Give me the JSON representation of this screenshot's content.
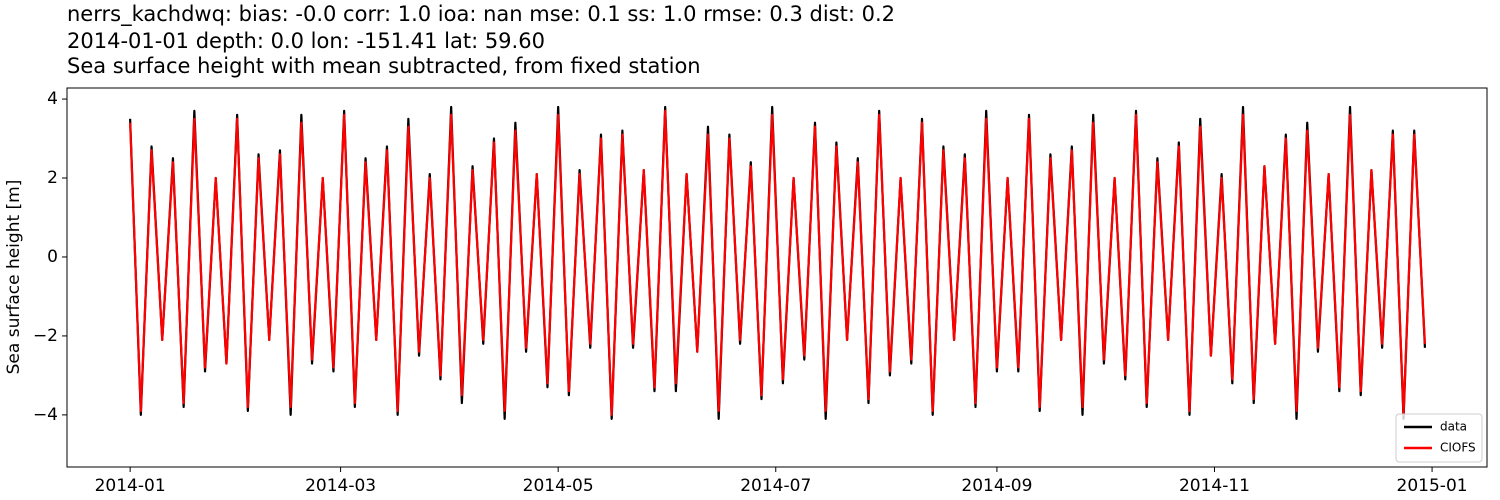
{
  "chart_data": {
    "type": "line",
    "title": [
      "nerrs_kachdwq: bias: -0.0  corr: 1.0  ioa: nan  mse: 0.1  ss: 1.0  rmse: 0.3  dist: 0.2",
      "2014-01-01 depth: 0.0 lon: -151.41 lat: 59.60",
      "Sea surface height with mean subtracted, from fixed station"
    ],
    "y_label": "Sea surface height [m]",
    "x": [
      0,
      3,
      6,
      9,
      12,
      15,
      18,
      21,
      24,
      27,
      30,
      33,
      36,
      39,
      42,
      45,
      48,
      51,
      54,
      57,
      60,
      63,
      66,
      69,
      72,
      75,
      78,
      81,
      84,
      87,
      90,
      93,
      96,
      99,
      102,
      105,
      108,
      111,
      114,
      117,
      120,
      123,
      126,
      129,
      132,
      135,
      138,
      141,
      144,
      147,
      150,
      153,
      156,
      159,
      162,
      165,
      168,
      171,
      174,
      177,
      180,
      183,
      186,
      189,
      192,
      195,
      198,
      201,
      204,
      207,
      210,
      213,
      216,
      219,
      222,
      225,
      228,
      231,
      234,
      237,
      240,
      243,
      246,
      249,
      252,
      255,
      258,
      261,
      264,
      267,
      270,
      273,
      276,
      279,
      282,
      285,
      288,
      291,
      294,
      297,
      300,
      303,
      306,
      309,
      312,
      315,
      318,
      321,
      324,
      327,
      330,
      333,
      336,
      339,
      342,
      345,
      348,
      351,
      354,
      357,
      360,
      363
    ],
    "series": [
      {
        "name": "data",
        "color": "#000000",
        "values": [
          3.5,
          -4.0,
          2.8,
          -2.1,
          2.5,
          -3.8,
          3.7,
          -2.9,
          2.0,
          -2.7,
          3.6,
          -3.9,
          2.6,
          -2.1,
          2.7,
          -4.0,
          3.6,
          -2.7,
          2.0,
          -2.9,
          3.7,
          -3.8,
          2.5,
          -2.1,
          2.8,
          -4.0,
          3.5,
          -2.5,
          2.1,
          -3.1,
          3.8,
          -3.7,
          2.3,
          -2.2,
          3.0,
          -4.1,
          3.4,
          -2.4,
          2.1,
          -3.3,
          3.8,
          -3.5,
          2.2,
          -2.3,
          3.1,
          -4.1,
          3.2,
          -2.3,
          2.2,
          -3.4,
          3.8,
          -3.4,
          2.1,
          -2.4,
          3.3,
          -4.1,
          3.1,
          -2.2,
          2.4,
          -3.6,
          3.8,
          -3.2,
          2.0,
          -2.6,
          3.4,
          -4.1,
          2.9,
          -2.1,
          2.5,
          -3.7,
          3.7,
          -3.0,
          2.0,
          -2.7,
          3.5,
          -4.0,
          2.8,
          -2.1,
          2.6,
          -3.8,
          3.7,
          -2.9,
          2.0,
          -2.9,
          3.6,
          -3.9,
          2.6,
          -2.1,
          2.8,
          -4.0,
          3.6,
          -2.7,
          2.0,
          -3.1,
          3.7,
          -3.8,
          2.5,
          -2.1,
          2.9,
          -4.0,
          3.5,
          -2.5,
          2.1,
          -3.2,
          3.8,
          -3.7,
          2.3,
          -2.2,
          3.1,
          -4.1,
          3.4,
          -2.4,
          2.1,
          -3.4,
          3.8,
          -3.5,
          2.2,
          -2.3,
          3.2,
          -4.1,
          3.2,
          -2.3
        ]
      },
      {
        "name": "CIOFS",
        "color": "#ff0000",
        "values": [
          3.4,
          -3.9,
          2.7,
          -2.1,
          2.4,
          -3.7,
          3.5,
          -2.8,
          2.0,
          -2.7,
          3.5,
          -3.8,
          2.5,
          -2.1,
          2.6,
          -3.8,
          3.4,
          -2.6,
          2.0,
          -2.8,
          3.6,
          -3.7,
          2.4,
          -2.1,
          2.7,
          -3.9,
          3.3,
          -2.4,
          2.0,
          -3.0,
          3.6,
          -3.5,
          2.2,
          -2.1,
          2.9,
          -3.9,
          3.2,
          -2.3,
          2.1,
          -3.2,
          3.6,
          -3.4,
          2.1,
          -2.2,
          3.0,
          -4.0,
          3.1,
          -2.2,
          2.2,
          -3.3,
          3.7,
          -3.2,
          2.1,
          -2.4,
          3.1,
          -3.9,
          3.0,
          -2.1,
          2.3,
          -3.5,
          3.6,
          -3.1,
          2.0,
          -2.5,
          3.3,
          -3.9,
          2.8,
          -2.1,
          2.4,
          -3.6,
          3.6,
          -2.9,
          2.0,
          -2.6,
          3.4,
          -3.9,
          2.7,
          -2.1,
          2.5,
          -3.7,
          3.5,
          -2.8,
          2.0,
          -2.8,
          3.5,
          -3.8,
          2.5,
          -2.1,
          2.7,
          -3.8,
          3.4,
          -2.6,
          2.0,
          -3.0,
          3.6,
          -3.7,
          2.4,
          -2.1,
          2.8,
          -3.9,
          3.3,
          -2.5,
          2.0,
          -3.1,
          3.6,
          -3.6,
          2.3,
          -2.2,
          3.0,
          -3.9,
          3.2,
          -2.3,
          2.1,
          -3.3,
          3.6,
          -3.4,
          2.2,
          -2.2,
          3.1,
          -4.0,
          3.1,
          -2.2
        ]
      }
    ],
    "xlim": [
      -17.7,
      380.4
    ],
    "xticks": [
      {
        "value": 0,
        "label": "2014-01"
      },
      {
        "value": 59,
        "label": "2014-03"
      },
      {
        "value": 120,
        "label": "2014-05"
      },
      {
        "value": 181,
        "label": "2014-07"
      },
      {
        "value": 243,
        "label": "2014-09"
      },
      {
        "value": 304,
        "label": "2014-11"
      },
      {
        "value": 365,
        "label": "2015-01"
      }
    ],
    "ylim": [
      -5.32,
      4.28
    ],
    "yticks": [
      {
        "value": -4,
        "label": "−4"
      },
      {
        "value": -2,
        "label": "−2"
      },
      0,
      2,
      4
    ],
    "grid": false,
    "legend": "lower right"
  }
}
